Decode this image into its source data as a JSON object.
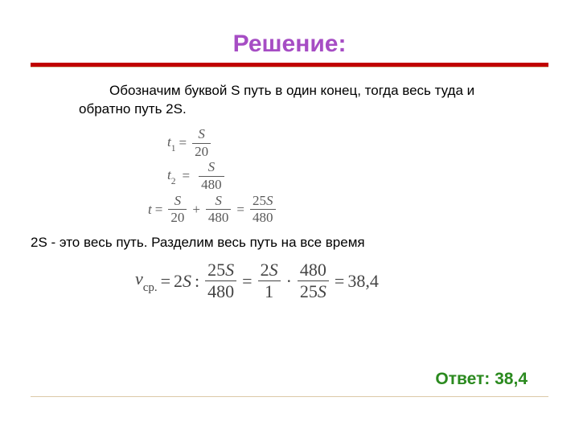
{
  "colors": {
    "title": "#a64dc4",
    "hr_red": "#c00000",
    "hr_pale": "#dcc9a8",
    "body_text": "#000000",
    "eq_text": "#595959",
    "eq_text2": "#444444",
    "answer": "#2b8a1f",
    "bg": "#ffffff"
  },
  "fonts": {
    "title_size": "30px",
    "body_size": "17px",
    "eq1_size": "17px",
    "eq2_size": "22px",
    "answer_size": "21px"
  },
  "title": "Решение:",
  "para1": "Обозначим буквой S путь в один конец, тогда весь туда и обратно путь 2S.",
  "para2": "2S - это весь путь. Разделим весь путь на все время",
  "answer": "Ответ: 38,4",
  "eq1": {
    "row1": {
      "lhs_var": "t",
      "lhs_sub": "1",
      "eq": "=",
      "num": "S",
      "den": "20"
    },
    "row2": {
      "lhs_var": "t",
      "lhs_sub": "2",
      "eq": "=",
      "num": "S",
      "den": "480"
    },
    "row3": {
      "lhs_var": "t",
      "eq": "=",
      "f1_num": "S",
      "f1_den": "20",
      "plus": "+",
      "f2_num": "S",
      "f2_den": "480",
      "eq2": "=",
      "f3_num": "25S",
      "f3_den": "480"
    }
  },
  "eq2": {
    "lhs_var": "v",
    "lhs_sub": "ср.",
    "eq": "=",
    "twoS": "2S",
    "colon": ":",
    "f1_num": "25S",
    "f1_den": "480",
    "eq2": "=",
    "f2_num": "2S",
    "f2_den": "1",
    "dot": "·",
    "f3_num": "480",
    "f3_den": "25S",
    "eq3": "=",
    "result": "38,4"
  }
}
